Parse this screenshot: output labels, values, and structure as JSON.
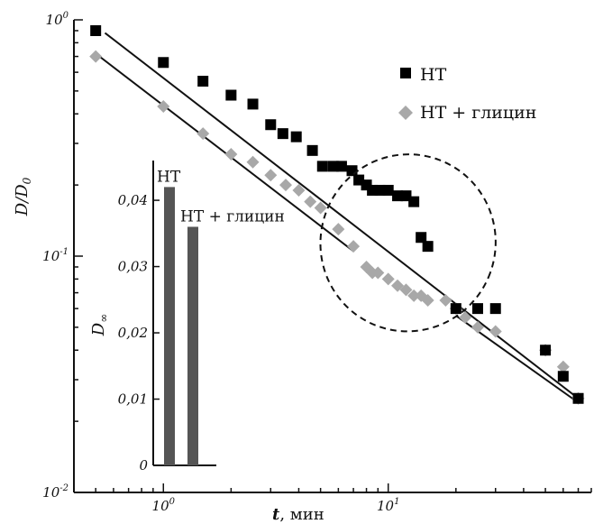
{
  "chart_data": [
    {
      "type": "scatter",
      "x_scale": "log",
      "y_scale": "log",
      "xlim": [
        0.4,
        80
      ],
      "ylim": [
        0.01,
        1.0
      ],
      "xlabel": {
        "main": "t",
        "unit": ", мин"
      },
      "ylabel": {
        "num": "D",
        "sep": "/",
        "den": "D",
        "sub": "0"
      },
      "x_ticks": [
        {
          "value": 1,
          "base": "10",
          "exp": "0"
        },
        {
          "value": 10,
          "base": "10",
          "exp": "1"
        }
      ],
      "y_ticks": [
        {
          "value": 1,
          "base": "10",
          "exp": "0"
        },
        {
          "value": 0.1,
          "base": "10",
          "exp": "-1"
        },
        {
          "value": 0.01,
          "base": "10",
          "exp": "-2"
        }
      ],
      "legend_position": "top-right",
      "series": [
        {
          "name": "НТ",
          "marker": "square",
          "color": "#000000",
          "x": [
            0.5,
            1.0,
            1.5,
            2.0,
            2.5,
            3.0,
            3.4,
            3.9,
            4.6,
            5.1,
            5.7,
            6.2,
            6.9,
            7.4,
            8.0,
            8.5,
            9.2,
            10.0,
            11.0,
            12.0,
            13.0,
            14.0,
            15.0,
            20.0,
            25.0,
            30.0,
            50.0,
            60.0,
            70.0
          ],
          "y": [
            0.9,
            0.66,
            0.55,
            0.48,
            0.44,
            0.36,
            0.33,
            0.32,
            0.28,
            0.24,
            0.24,
            0.24,
            0.23,
            0.21,
            0.2,
            0.19,
            0.19,
            0.19,
            0.18,
            0.18,
            0.17,
            0.12,
            0.11,
            0.06,
            0.06,
            0.06,
            0.04,
            0.031,
            0.025
          ]
        },
        {
          "name": "НТ + глицин",
          "marker": "diamond",
          "color": "#a8a8a8",
          "x": [
            0.5,
            1.0,
            1.5,
            2.0,
            2.5,
            3.0,
            3.5,
            4.0,
            4.5,
            5.0,
            6.0,
            7.0,
            8.0,
            8.5,
            9.0,
            10.0,
            11.0,
            12.0,
            13.0,
            14.0,
            15.0,
            18.0,
            20.0,
            22.0,
            25.0,
            30.0,
            50.0,
            60.0,
            70.0
          ],
          "y": [
            0.7,
            0.43,
            0.33,
            0.27,
            0.25,
            0.22,
            0.2,
            0.19,
            0.17,
            0.16,
            0.13,
            0.11,
            0.09,
            0.085,
            0.085,
            0.08,
            0.075,
            0.072,
            0.068,
            0.068,
            0.065,
            0.065,
            0.06,
            0.055,
            0.05,
            0.048,
            0.04,
            0.034,
            0.025
          ]
        }
      ],
      "fit_lines": [
        {
          "series": "НТ",
          "x": [
            0.55,
            70.0
          ],
          "y": [
            0.88,
            0.025
          ]
        },
        {
          "series": "НТ + глицин",
          "x": [
            0.5,
            7.0
          ],
          "y": [
            0.72,
            0.105
          ]
        },
        {
          "series": "НТ + глицин",
          "x": [
            20.0,
            70.0
          ],
          "y": [
            0.056,
            0.024
          ]
        }
      ],
      "annotation": {
        "shape": "dashed-ellipse",
        "x_range": [
          5.0,
          30.0
        ],
        "y_range": [
          0.048,
          0.27
        ]
      }
    },
    {
      "type": "bar",
      "ylabel": {
        "main": "D",
        "sub": "∞"
      },
      "ylim": [
        0,
        0.046
      ],
      "y_ticks": [
        "0",
        "0,01",
        "0,02",
        "0,03",
        "0,04"
      ],
      "categories": [
        "НТ",
        "НТ + глицин"
      ],
      "values": [
        0.042,
        0.036
      ],
      "bar_color": "#555555"
    }
  ]
}
